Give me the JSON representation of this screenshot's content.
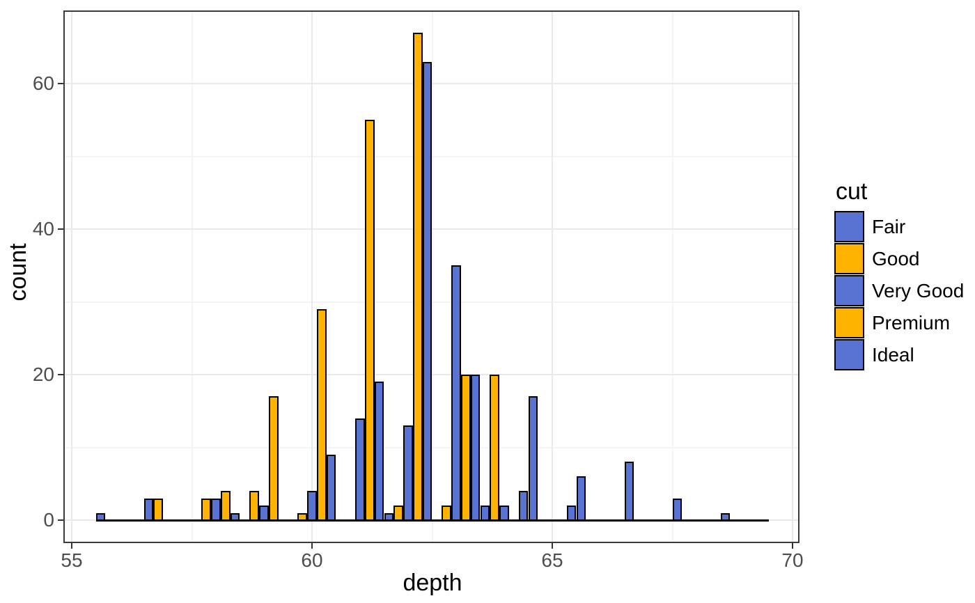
{
  "chart_data": {
    "type": "bar",
    "subtype": "dodged-histogram",
    "title": "",
    "xlabel": "depth",
    "ylabel": "count",
    "x_tick_labels": [
      "55",
      "60",
      "65",
      "70"
    ],
    "x_tick_values": [
      55,
      60,
      65,
      70
    ],
    "x_minor_values": [
      57.5,
      62.5,
      67.5
    ],
    "y_tick_labels": [
      "0",
      "20",
      "40",
      "60"
    ],
    "y_tick_values": [
      0,
      20,
      40,
      60
    ],
    "y_minor_values": [
      10,
      30,
      50
    ],
    "xlim": [
      54.83,
      70.15
    ],
    "ylim": [
      -3.2,
      70
    ],
    "grid": "on",
    "legend_position": "right",
    "bar_slot_width": 0.2,
    "outline_color": "#000000",
    "palette": {
      "Fair": "#5873d2",
      "Good": "#fdb300",
      "Very Good": "#5873d2",
      "Premium": "#fdb300",
      "Ideal": "#5873d2"
    },
    "zero_line": {
      "from": 55.5,
      "to": 69.5
    },
    "legend": {
      "title": "cut",
      "entries": [
        {
          "label": "Fair",
          "fill": "#5873d2"
        },
        {
          "label": "Good",
          "fill": "#fdb300"
        },
        {
          "label": "Very Good",
          "fill": "#5873d2"
        },
        {
          "label": "Premium",
          "fill": "#fdb300"
        },
        {
          "label": "Ideal",
          "fill": "#5873d2"
        }
      ]
    },
    "bars": [
      {
        "x0": 55.5,
        "cut": "Fair",
        "count": 1
      },
      {
        "x0": 56.5,
        "cut": "Fair",
        "count": 3
      },
      {
        "x0": 56.7,
        "cut": "Good",
        "count": 3
      },
      {
        "x0": 57.7,
        "cut": "Good",
        "count": 3
      },
      {
        "x0": 57.9,
        "cut": "Very Good",
        "count": 3
      },
      {
        "x0": 58.1,
        "cut": "Premium",
        "count": 4
      },
      {
        "x0": 58.3,
        "cut": "Ideal",
        "count": 1
      },
      {
        "x0": 58.7,
        "cut": "Good",
        "count": 4
      },
      {
        "x0": 58.9,
        "cut": "Very Good",
        "count": 2
      },
      {
        "x0": 59.1,
        "cut": "Premium",
        "count": 17
      },
      {
        "x0": 59.7,
        "cut": "Good",
        "count": 1
      },
      {
        "x0": 59.9,
        "cut": "Very Good",
        "count": 4
      },
      {
        "x0": 60.1,
        "cut": "Premium",
        "count": 29
      },
      {
        "x0": 60.3,
        "cut": "Ideal",
        "count": 9
      },
      {
        "x0": 60.9,
        "cut": "Very Good",
        "count": 14
      },
      {
        "x0": 61.1,
        "cut": "Premium",
        "count": 55
      },
      {
        "x0": 61.3,
        "cut": "Ideal",
        "count": 19
      },
      {
        "x0": 61.5,
        "cut": "Fair",
        "count": 1
      },
      {
        "x0": 61.7,
        "cut": "Good",
        "count": 2
      },
      {
        "x0": 61.9,
        "cut": "Very Good",
        "count": 13
      },
      {
        "x0": 62.1,
        "cut": "Premium",
        "count": 67
      },
      {
        "x0": 62.3,
        "cut": "Ideal",
        "count": 63
      },
      {
        "x0": 62.7,
        "cut": "Good",
        "count": 2
      },
      {
        "x0": 62.9,
        "cut": "Very Good",
        "count": 35
      },
      {
        "x0": 63.1,
        "cut": "Premium",
        "count": 20
      },
      {
        "x0": 63.3,
        "cut": "Ideal",
        "count": 20
      },
      {
        "x0": 63.5,
        "cut": "Fair",
        "count": 2
      },
      {
        "x0": 63.7,
        "cut": "Good",
        "count": 20
      },
      {
        "x0": 63.9,
        "cut": "Very Good",
        "count": 2
      },
      {
        "x0": 64.3,
        "cut": "Ideal",
        "count": 4
      },
      {
        "x0": 64.5,
        "cut": "Fair",
        "count": 17
      },
      {
        "x0": 65.3,
        "cut": "Ideal",
        "count": 2
      },
      {
        "x0": 65.5,
        "cut": "Fair",
        "count": 6
      },
      {
        "x0": 66.5,
        "cut": "Fair",
        "count": 8
      },
      {
        "x0": 67.5,
        "cut": "Fair",
        "count": 3
      },
      {
        "x0": 68.5,
        "cut": "Fair",
        "count": 1
      }
    ],
    "colors": {
      "blue": "#5873d2",
      "orange": "#fdb300",
      "grid_major": "#e9e9e9",
      "grid_minor": "#f4f4f4",
      "panel_border": "#3b3b3b",
      "tick": "#333333",
      "tick_label": "#4d4d4d"
    }
  }
}
